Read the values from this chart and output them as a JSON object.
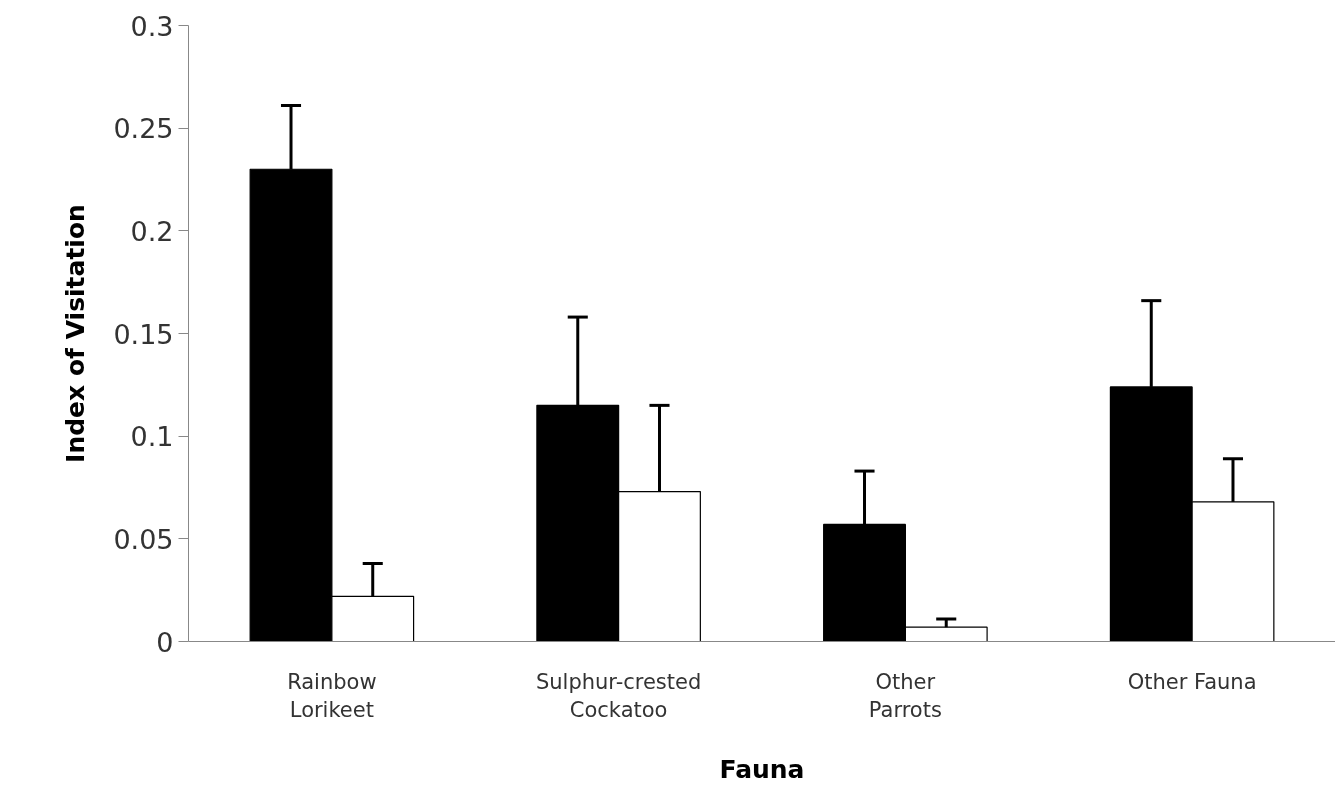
{
  "chart_data": {
    "type": "bar",
    "xlabel": "Fauna",
    "ylabel": "Index of Visitation",
    "categories": [
      "Rainbow\nLorikeet",
      "Sulphur-crested\nCockatoo",
      "Other\nParrots",
      "Other Fauna"
    ],
    "series": [
      {
        "color": "#000000",
        "values": [
          0.23,
          0.115,
          0.057,
          0.124
        ],
        "errors": [
          [
            0.23,
            0.261
          ],
          [
            0.115,
            0.158
          ],
          [
            0.057,
            0.083
          ],
          [
            0.124,
            0.166
          ]
        ]
      },
      {
        "color": "#ffffff",
        "values": [
          0.022,
          0.073,
          0.007,
          0.068
        ],
        "errors": [
          [
            0.022,
            0.038
          ],
          [
            0.073,
            0.115
          ],
          [
            0.007,
            0.011
          ],
          [
            0.068,
            0.089
          ]
        ]
      }
    ],
    "ylim": [
      0,
      0.3
    ],
    "yticks": [
      0,
      0.05,
      0.1,
      0.15,
      0.2,
      0.25,
      0.3
    ],
    "grid": false
  }
}
